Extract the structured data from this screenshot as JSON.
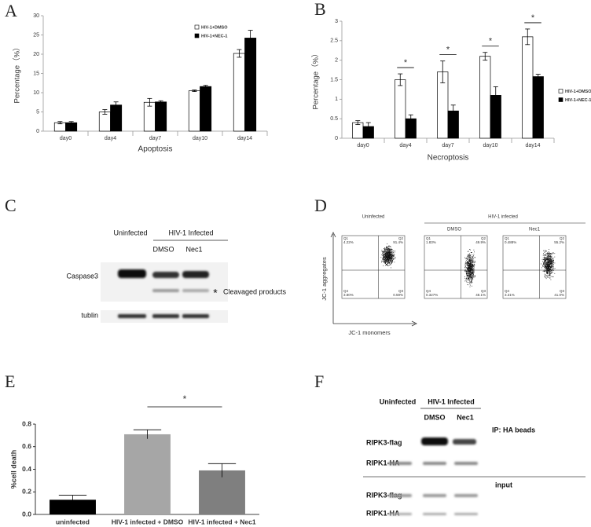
{
  "chart_data": [
    {
      "type": "bar",
      "ylabel": "Percentage（%）",
      "xlabel": "Apoptosis",
      "categories": [
        "day0",
        "day4",
        "day7",
        "day10",
        "day14"
      ],
      "series": [
        {
          "name": "HIV-1+DMSO",
          "color": "#ffffff",
          "values": [
            2.2,
            5,
            7.5,
            10.5,
            20.2
          ],
          "errors": [
            0.3,
            0.6,
            1,
            0.2,
            1
          ]
        },
        {
          "name": "HIV-1+NEC-1",
          "color": "#000000",
          "values": [
            2.2,
            6.8,
            7.6,
            11.6,
            24.2
          ],
          "errors": [
            0.3,
            0.8,
            0.3,
            0.3,
            2
          ]
        }
      ],
      "ylim": [
        0,
        30
      ],
      "yticks": [
        0,
        5,
        10,
        15,
        20,
        25,
        30
      ],
      "legend": "upper right"
    },
    {
      "type": "bar",
      "ylabel": "Percentage（%）",
      "xlabel": "Necroptosis",
      "categories": [
        "day0",
        "day4",
        "day7",
        "day10",
        "day14"
      ],
      "series": [
        {
          "name": "HIV-1+DMSO",
          "color": "#ffffff",
          "values": [
            0.4,
            1.5,
            1.7,
            2.1,
            2.6
          ],
          "errors": [
            0.05,
            0.15,
            0.28,
            0.1,
            0.2
          ]
        },
        {
          "name": "HIV-1+NEC-1",
          "color": "#000000",
          "values": [
            0.3,
            0.5,
            0.7,
            1.1,
            1.58
          ],
          "errors": [
            0.1,
            0.1,
            0.15,
            0.22,
            0.06
          ]
        }
      ],
      "significance": [
        null,
        "*",
        "*",
        "*",
        "*"
      ],
      "ylim": [
        0,
        3
      ],
      "yticks": [
        0,
        0.5,
        1,
        1.5,
        2,
        2.5,
        3
      ],
      "legend": "right"
    },
    {
      "type": "bar",
      "ylabel": "%cell death",
      "categories": [
        "uninfected",
        "HIV-1 infected + DMSO",
        "HIV-1 infected + Nec1"
      ],
      "values": [
        0.13,
        0.71,
        0.39
      ],
      "errors": [
        0.04,
        0.04,
        0.06
      ],
      "colors": [
        "#000000",
        "#a6a6a6",
        "#7f7f7f"
      ],
      "comparison": {
        "label": "*",
        "categories": [
          1,
          2
        ]
      },
      "ylim": [
        0,
        0.8
      ],
      "yticks": [
        {
          "value": 0,
          "label": "0.0"
        },
        0.2,
        0.4,
        0.6,
        0.8
      ]
    }
  ],
  "figure": {
    "letters": [
      "A",
      "B",
      "C",
      "D",
      "E",
      "F"
    ],
    "blot_c": {
      "uninfected": "Uninfected",
      "infected": "HIV-1 Infected",
      "lanes": [
        "DMSO",
        "Nec1"
      ],
      "rows": [
        "Caspase3",
        "tublin"
      ],
      "marker": "*",
      "marker_label": "Cleavaged products"
    },
    "flow_d": {
      "uninfected": "Uninfected",
      "infected": "HIV-1 infected",
      "lanes": [
        "DMSO",
        "Nec1"
      ],
      "y_axis": "JC-1 aggregates",
      "x_axis": "JC-1 monomers",
      "quadrant_names": [
        "Q1",
        "Q2",
        "Q3",
        "Q4"
      ],
      "percents": [
        [
          "4.22%",
          "91.4%",
          "0.59%",
          "3.80%"
        ],
        [
          "1.83%",
          "49.9%",
          "48.1%",
          "0.327%"
        ],
        [
          "0.488%",
          "55.2%",
          "41.0%",
          "3.31%"
        ]
      ]
    },
    "blot_f": {
      "uninfected": "Uninfected",
      "infected": "HIV-1 Infected",
      "lanes": [
        "DMSO",
        "Nec1"
      ],
      "ip": "IP: HA beads",
      "input": "input",
      "ip_rows": [
        "RIPK3-flag",
        "RIPK1-HA"
      ],
      "input_rows": [
        "RIPK3-flag",
        "RIPK1-HA"
      ]
    }
  }
}
